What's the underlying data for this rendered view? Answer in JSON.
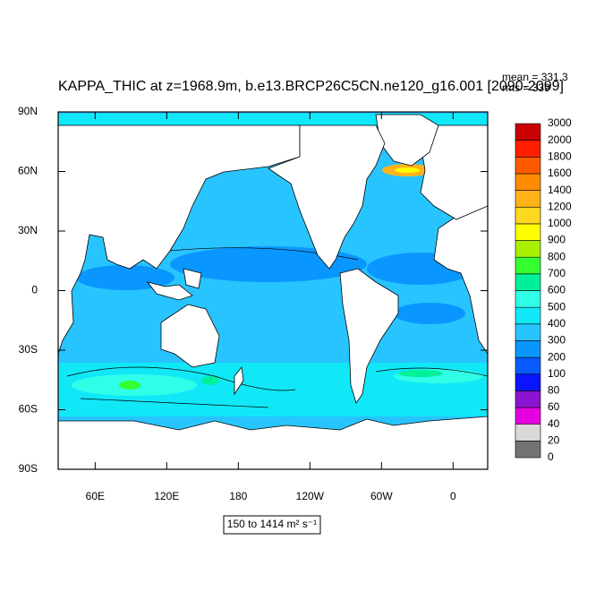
{
  "title": "KAPPA_THIC at z=1968.9m, b.e13.BRCP26C5CN.ne120_g16.001 [2090-2099]",
  "stats": [
    "mean = 331.3",
    "rms = 339"
  ],
  "map": {
    "latlim": [
      -90,
      90
    ],
    "lonlim": [
      29,
      389
    ],
    "lat_ticks": [
      {
        "value": 90,
        "label": "90N"
      },
      {
        "value": 60,
        "label": "60N"
      },
      {
        "value": 30,
        "label": "30N"
      },
      0,
      {
        "value": -30,
        "label": "30S"
      },
      {
        "value": -60,
        "label": "60S"
      },
      {
        "value": -90,
        "label": "90S"
      }
    ],
    "lon_ticks": [
      {
        "value": 60,
        "label": "60E"
      },
      {
        "value": 120,
        "label": "120E"
      },
      180,
      {
        "value": 240,
        "label": "120W"
      },
      {
        "value": 300,
        "label": "60W"
      },
      {
        "value": 360,
        "label": "0"
      }
    ]
  },
  "colorbar": {
    "levels": [
      0,
      20,
      40,
      60,
      80,
      100,
      200,
      300,
      400,
      500,
      600,
      700,
      800,
      900,
      1000,
      1200,
      1400,
      1600,
      1800,
      2000,
      3000
    ],
    "colors": [
      "#737373",
      "#d8d8d8",
      "#e600e0",
      "#8a14d0",
      "#0a14ff",
      "#0a5aff",
      "#0a96ff",
      "#28c4ff",
      "#10e8f8",
      "#30ffe8",
      "#00f09a",
      "#34ff30",
      "#a8f000",
      "#ffff00",
      "#ffd820",
      "#ffb21a",
      "#ff8c00",
      "#ff5a00",
      "#ff1e00",
      "#c80000"
    ]
  },
  "range_label": "150 to 1414 m² s⁻¹"
}
